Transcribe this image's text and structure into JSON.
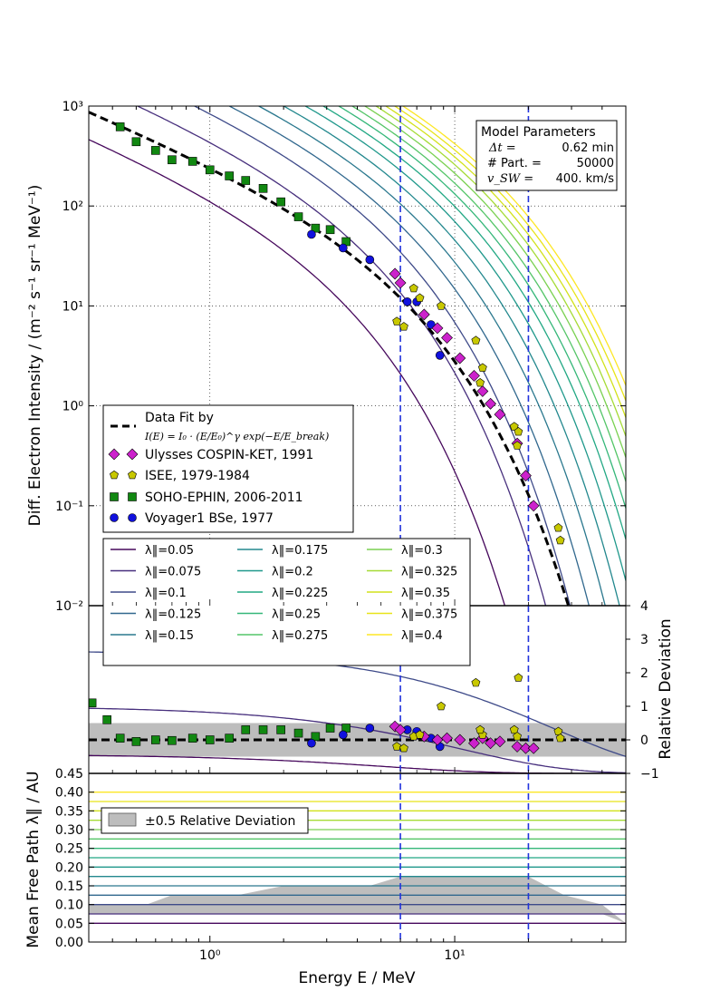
{
  "chart_data": [
    {
      "type": "line",
      "panel": "top",
      "ylabel": "Diff. Electron Intensity / (m⁻² s⁻¹ sr⁻¹ MeV⁻¹)",
      "xscale": "log",
      "yscale": "log",
      "xlim": [
        0.32,
        50
      ],
      "ylim": [
        0.01,
        1000
      ],
      "ytick_labels": [
        "10³",
        "10²",
        "10¹",
        "10⁰",
        "10⁻¹",
        "10⁻²"
      ],
      "model_parameters": {
        "title": "Model Parameters",
        "rows": [
          {
            "label": "Δt =",
            "value": "0.62 min"
          },
          {
            "label": "# Part. =",
            "value": "50000"
          },
          {
            "label": "v_SW =",
            "value": "400. km/s"
          }
        ]
      },
      "legend": [
        {
          "marker": "dash",
          "text": "Data Fit by",
          "text2": "I(E) = I₀ · (E/E₀)^γ exp(−E/E_break)"
        },
        {
          "marker": "diamond",
          "color": "#cc22cc",
          "text": "Ulysses COSPIN-KET, 1991"
        },
        {
          "marker": "pentagon",
          "color": "#c8c800",
          "text": "ISEE, 1979-1984"
        },
        {
          "marker": "square",
          "color": "#118811",
          "text": "SOHO-EPHIN, 2006-2011"
        },
        {
          "marker": "circle",
          "color": "#1111dd",
          "text": "Voyager1 BSe, 1977"
        }
      ],
      "fit": {
        "I0": 300,
        "E0": 1,
        "gamma": -1.0,
        "Ebreak": 4.2
      },
      "model_curves": {
        "lambda": [
          0.05,
          0.075,
          0.1,
          0.125,
          0.15,
          0.175,
          0.2,
          0.225,
          0.25,
          0.275,
          0.3,
          0.325,
          0.35,
          0.375,
          0.4
        ],
        "amplitude": [
          170,
          600,
          1100,
          1600,
          2200,
          2900,
          3700,
          4500,
          5400,
          6300,
          7300,
          8300,
          9300,
          10300,
          11300
        ],
        "Ebreak": [
          2.3,
          3.0,
          3.6,
          4.2,
          4.8,
          5.4,
          6.0,
          6.6,
          7.1,
          7.6,
          8.1,
          8.6,
          9.1,
          9.6,
          10.1
        ],
        "colors": [
          "#46085c",
          "#472f7d",
          "#3e4a89",
          "#31688e",
          "#2a788e",
          "#23888e",
          "#1f988b",
          "#22a884",
          "#35b779",
          "#54c568",
          "#7ad151",
          "#a5db36",
          "#d2e21b",
          "#e8e419",
          "#fde725"
        ],
        "legend_labels": [
          "λ‖=0.05",
          "λ‖=0.075",
          "λ‖=0.1",
          "λ‖=0.125",
          "λ‖=0.15",
          "λ‖=0.175",
          "λ‖=0.2",
          "λ‖=0.225",
          "λ‖=0.25",
          "λ‖=0.275",
          "λ‖=0.3",
          "λ‖=0.325",
          "λ‖=0.35",
          "λ‖=0.375",
          "λ‖=0.4"
        ]
      },
      "series": [
        {
          "name": "SOHO-EPHIN, 2006-2011",
          "x": [
            0.43,
            0.5,
            0.6,
            0.7,
            0.85,
            1.0,
            1.2,
            1.4,
            1.65,
            1.95,
            2.3,
            2.7,
            3.1,
            3.6
          ],
          "y": [
            620,
            440,
            360,
            290,
            280,
            230,
            200,
            180,
            150,
            110,
            78,
            60,
            58,
            44
          ]
        },
        {
          "name": "Voyager1 BSe, 1977",
          "x": [
            2.6,
            3.5,
            4.5,
            6.4,
            7.0,
            8.0,
            8.7
          ],
          "y": [
            52,
            38,
            29,
            11,
            11,
            6.5,
            3.2
          ]
        },
        {
          "name": "Ulysses COSPIN-KET, 1991",
          "x": [
            5.7,
            6.0,
            7.5,
            8.5,
            9.3,
            10.5,
            12.0,
            13.0,
            14.0,
            15.3,
            18.0,
            19.5,
            21.0
          ],
          "y": [
            21,
            17,
            8.2,
            6.0,
            4.8,
            3.0,
            2.0,
            1.4,
            1.05,
            0.82,
            0.42,
            0.2,
            0.1
          ]
        },
        {
          "name": "ISEE, 1979-1984",
          "x": [
            5.8,
            6.2,
            6.8,
            7.2,
            8.8,
            12.2,
            13.0,
            12.7,
            17.5,
            18.0,
            18.2,
            26.5,
            27.0
          ],
          "y": [
            7.0,
            6.2,
            15.0,
            12.0,
            10.0,
            4.5,
            2.4,
            1.7,
            0.62,
            0.4,
            0.55,
            0.06,
            0.045
          ]
        }
      ],
      "vertical_lines": [
        6,
        20
      ]
    },
    {
      "type": "line",
      "panel": "middle",
      "ylabel": "Relative Deviation",
      "xscale": "log",
      "ylim": [
        -1,
        4
      ],
      "yticks": [
        4,
        3,
        2,
        1,
        0,
        -1
      ],
      "band": [
        -0.5,
        0.5
      ],
      "series": [
        {
          "name": "SOHO-EPHIN, 2006-2011",
          "x": [
            0.33,
            0.38,
            0.43,
            0.5,
            0.6,
            0.7,
            0.85,
            1.0,
            1.2,
            1.4,
            1.65,
            1.95,
            2.3,
            2.7,
            3.1,
            3.6
          ],
          "y": [
            1.1,
            0.6,
            0.05,
            -0.05,
            0.0,
            -0.02,
            0.05,
            0.0,
            0.05,
            0.3,
            0.3,
            0.3,
            0.2,
            0.1,
            0.35,
            0.35
          ]
        },
        {
          "name": "Voyager1 BSe, 1977",
          "x": [
            2.6,
            3.5,
            4.5,
            6.4,
            7.0,
            8.0,
            8.7
          ],
          "y": [
            -0.1,
            0.15,
            0.35,
            0.3,
            0.25,
            0.05,
            -0.2
          ]
        },
        {
          "name": "Ulysses COSPIN-KET, 1991",
          "x": [
            5.7,
            6.0,
            7.5,
            8.5,
            9.3,
            10.5,
            12.0,
            13.0,
            14.0,
            15.3,
            18.0,
            19.5,
            21.0
          ],
          "y": [
            0.4,
            0.3,
            0.1,
            0.0,
            0.05,
            0.0,
            -0.1,
            0.05,
            -0.1,
            -0.05,
            -0.2,
            -0.25,
            -0.25
          ]
        },
        {
          "name": "ISEE, 1979-1984",
          "x": [
            5.8,
            6.2,
            6.8,
            7.2,
            8.8,
            12.2,
            13.0,
            12.7,
            17.5,
            18.0,
            18.2,
            26.5,
            27.0
          ],
          "y": [
            -0.2,
            -0.25,
            0.1,
            0.15,
            1.0,
            1.7,
            0.15,
            0.3,
            0.3,
            0.1,
            1.85,
            0.25,
            0.05
          ]
        }
      ]
    },
    {
      "type": "area",
      "panel": "bottom",
      "xlabel": "Energy E / MeV",
      "ylabel": "Mean Free Path λ‖ / AU",
      "xscale": "log",
      "ylim": [
        0.0,
        0.45
      ],
      "ytick_labels": [
        "0.45",
        "0.40",
        "0.35",
        "0.30",
        "0.25",
        "0.20",
        "0.15",
        "0.10",
        "0.05",
        "0.00"
      ],
      "yticks": [
        0.45,
        0.4,
        0.35,
        0.3,
        0.25,
        0.2,
        0.15,
        0.1,
        0.05,
        0.0
      ],
      "xtick_labels": [
        "10⁰",
        "10¹"
      ],
      "xticks": [
        1,
        10
      ],
      "legend": [
        {
          "marker": "band",
          "text": "±0.5 Relative Deviation"
        }
      ],
      "band": {
        "x": [
          0.32,
          0.55,
          0.7,
          1.3,
          2.0,
          4.5,
          6.0,
          9.0,
          16.0,
          20.0,
          28.0,
          40.0,
          50.0
        ],
        "lower": [
          0.075,
          0.075,
          0.075,
          0.075,
          0.075,
          0.075,
          0.075,
          0.075,
          0.075,
          0.075,
          0.075,
          0.075,
          0.05
        ],
        "upper": [
          0.1,
          0.1,
          0.125,
          0.125,
          0.15,
          0.15,
          0.175,
          0.175,
          0.175,
          0.175,
          0.125,
          0.1,
          0.05
        ]
      }
    }
  ]
}
